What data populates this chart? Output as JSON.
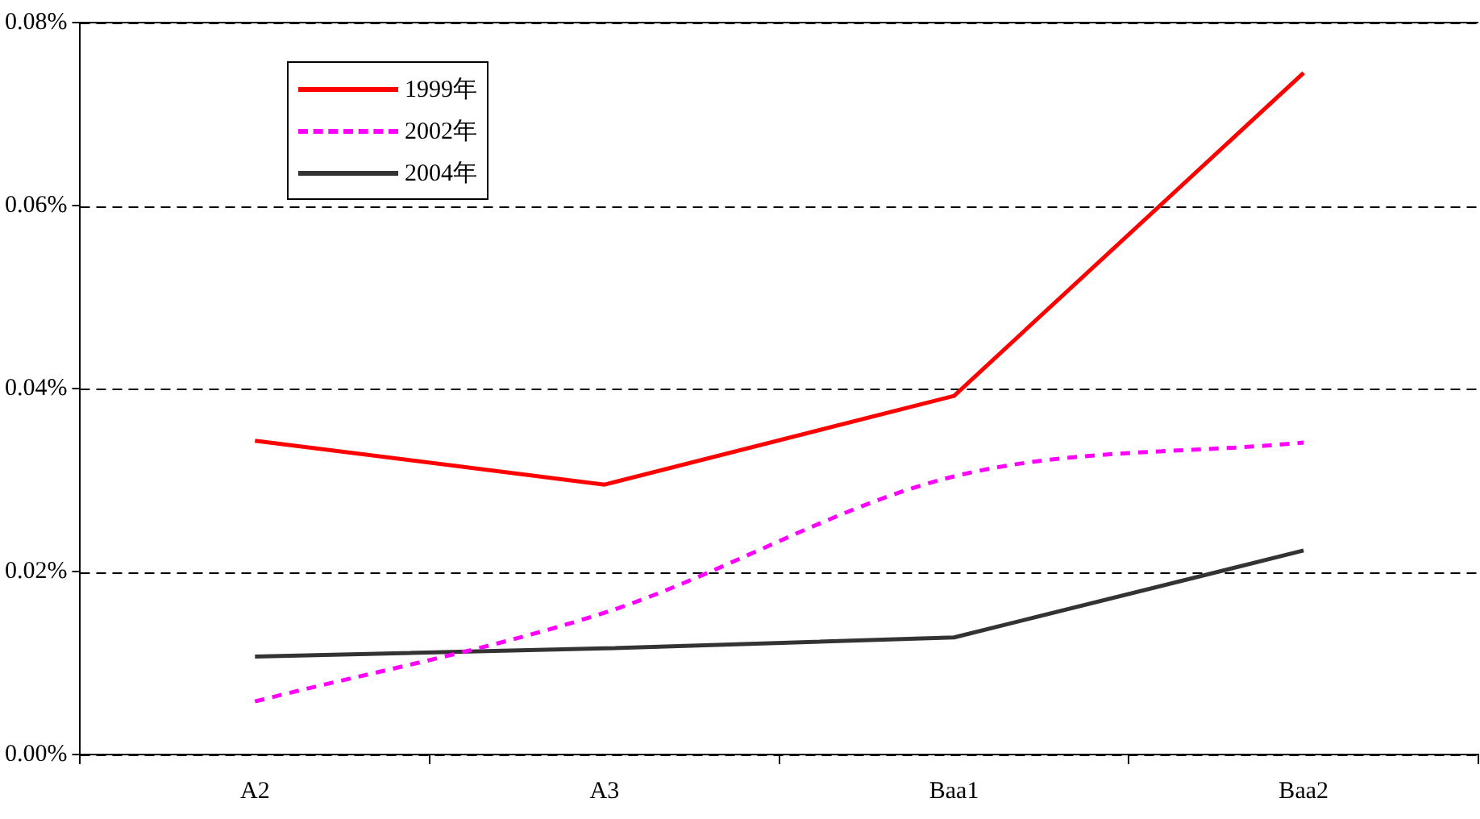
{
  "chart_data": {
    "type": "line",
    "categories": [
      "A2",
      "A3",
      "Baa1",
      "Baa2"
    ],
    "series": [
      {
        "name": "1999年",
        "color": "#ff0000",
        "line_style": "solid",
        "values": [
          0.0343,
          0.0295,
          0.0392,
          0.0745
        ]
      },
      {
        "name": "2002年",
        "color": "#ff00ff",
        "line_style": "dashed",
        "values": [
          0.0058,
          0.0155,
          0.0304,
          0.0341
        ]
      },
      {
        "name": "2004年",
        "color": "#333333",
        "line_style": "solid",
        "values": [
          0.0107,
          0.0116,
          0.0128,
          0.0223
        ]
      }
    ],
    "ylim": [
      0,
      0.08
    ],
    "yticks": [
      {
        "value": 0,
        "label": "0.00%"
      },
      {
        "value": 0.02,
        "label": "0.02%"
      },
      {
        "value": 0.04,
        "label": "0.04%"
      },
      {
        "value": 0.06,
        "label": "0.06%"
      },
      {
        "value": 0.08,
        "label": "0.08%"
      }
    ],
    "grid": "y",
    "legend": "top left",
    "marker": "none"
  }
}
